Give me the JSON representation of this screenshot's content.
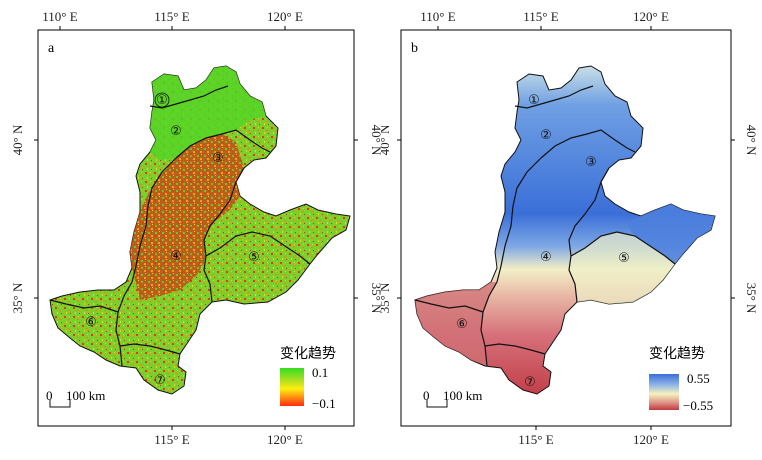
{
  "panels": [
    {
      "letter": "a",
      "top_ticks": [
        "110° E",
        "115° E",
        "120° E"
      ],
      "bottom_ticks": [
        "115° E",
        "120° E"
      ],
      "left_ticks": [
        "40° N",
        "35° N"
      ],
      "right_ticks": [
        "40° N",
        "35° N"
      ],
      "regions": [
        "①",
        "②",
        "③",
        "④",
        "⑤",
        "⑥",
        "⑦"
      ],
      "legend": {
        "title": "变化趋势",
        "max": "0.1",
        "min": "−0.1",
        "colors": [
          "#33dd22",
          "#b8e01e",
          "#ffee10",
          "#ff8a10",
          "#ff2a10"
        ]
      },
      "scale_bar": {
        "start": "0",
        "end": "100 km"
      }
    },
    {
      "letter": "b",
      "top_ticks": [
        "110° E",
        "115° E",
        "120° E"
      ],
      "bottom_ticks": [
        "115° E",
        "120° E"
      ],
      "left_ticks": [
        "40° N",
        "35° N"
      ],
      "right_ticks": [
        "40° N",
        "35° N"
      ],
      "regions": [
        "①",
        "②",
        "③",
        "④",
        "⑤",
        "⑥",
        "⑦"
      ],
      "legend": {
        "title": "变化趋势",
        "max": "0.55",
        "min": "−0.55",
        "colors": [
          "#3a6fd8",
          "#8fb4e6",
          "#f4f2bf",
          "#e09a8a",
          "#c03a40"
        ]
      },
      "scale_bar": {
        "start": "0",
        "end": "100 km"
      }
    }
  ]
}
